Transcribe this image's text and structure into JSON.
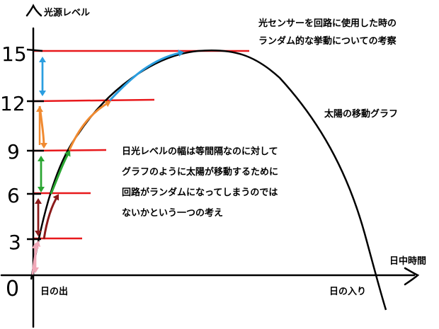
{
  "axes": {
    "y_label": "光源レベル",
    "x_label": "日中時間"
  },
  "y_ticks": [
    {
      "value": 0,
      "label": "0"
    },
    {
      "value": 3,
      "label": "3"
    },
    {
      "value": 6,
      "label": "6"
    },
    {
      "value": 9,
      "label": "9"
    },
    {
      "value": 12,
      "label": "12"
    },
    {
      "value": 15,
      "label": "15"
    }
  ],
  "x_labels": {
    "sunrise": "日の出",
    "sunset": "日の入り"
  },
  "notes": {
    "title_line1": "光センサーを回路に使用した時の",
    "title_line2": "ランダム的な挙動についての考察",
    "graph_name": "太陽の移動グラフ",
    "body_line1": "日光レベルの幅は等間隔なのに対して",
    "body_line2": "グラフのように太陽が移動するために",
    "body_line3": "回路がランダムになってしまうのでは",
    "body_line4": "ないかという一つの考え"
  },
  "colors": {
    "curve": "#000000",
    "level_lines": "#e8191c",
    "arrow_0_3": "#f0a8b8",
    "arrow_3_6": "#8b1a1a",
    "arrow_6_9": "#2aa532",
    "arrow_9_12": "#f08a30",
    "arrow_12_15": "#2a9ee0"
  }
}
